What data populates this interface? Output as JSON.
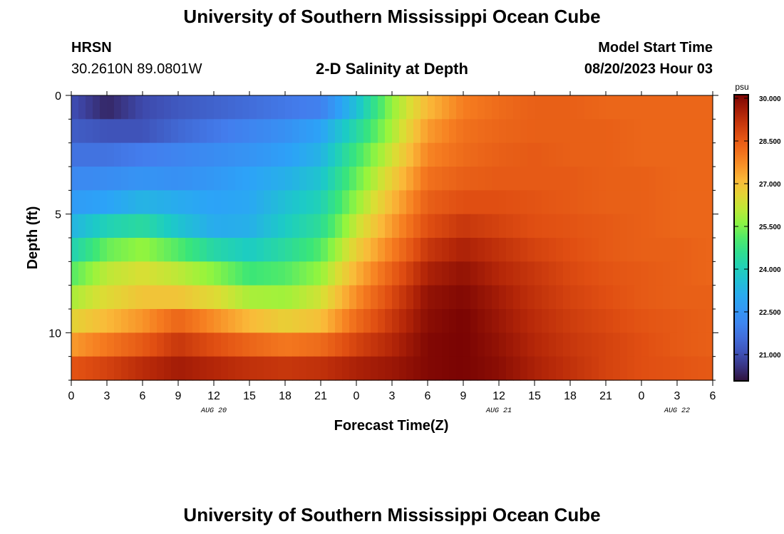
{
  "page": {
    "title": "University of Southern Mississippi Ocean Cube",
    "station": "HRSN",
    "coords": "30.2610N  89.0801W",
    "subtitle": "2-D Salinity at Depth",
    "model_label": "Model Start Time",
    "model_time": "08/20/2023 Hour 03",
    "footer_title": "University of Southern Mississippi Ocean Cube"
  },
  "chart_data": {
    "type": "heatmap",
    "title": "2-D Salinity at Depth",
    "xlabel": "Forecast Time(Z)",
    "ylabel": "Depth (ft)",
    "x_hours_range": [
      0,
      54
    ],
    "x_tick_hours": [
      0,
      3,
      6,
      9,
      12,
      15,
      18,
      21,
      24,
      27,
      30,
      33,
      36,
      39,
      42,
      45,
      48,
      51,
      54
    ],
    "x_tick_labels": [
      "0",
      "3",
      "6",
      "9",
      "12",
      "15",
      "18",
      "21",
      "0",
      "3",
      "6",
      "9",
      "12",
      "15",
      "18",
      "21",
      "0",
      "3",
      "6"
    ],
    "date_labels": [
      {
        "text": "AUG 20",
        "hour": 12
      },
      {
        "text": "AUG 21",
        "hour": 36
      },
      {
        "text": "AUG 22",
        "hour": 51
      }
    ],
    "y_range_ft": [
      0,
      12
    ],
    "y_major_ticks": [
      0,
      5,
      10
    ],
    "y_tick_labels": [
      "0",
      "5",
      "10"
    ],
    "colorbar": {
      "unit": "psu",
      "min": 20.0,
      "max": 30.0,
      "tick_values": [
        30.0,
        28.5,
        27.0,
        25.5,
        24.0,
        22.5,
        21.0
      ],
      "tick_labels": [
        "30.000",
        "28.500",
        "27.000",
        "25.500",
        "24.000",
        "22.500",
        "21.000"
      ]
    },
    "grid_hours": [
      0,
      3,
      6,
      9,
      12,
      15,
      18,
      21,
      24,
      27,
      30,
      33,
      36,
      39,
      42,
      45,
      48,
      51,
      54
    ],
    "depth_levels_ft": [
      0.5,
      1.5,
      2.5,
      3.5,
      4.5,
      5.5,
      6.5,
      7.5,
      8.5,
      9.5,
      10.5,
      11.5
    ],
    "salinity_psu": [
      [
        20.9,
        20.3,
        20.8,
        21.1,
        21.3,
        21.5,
        21.7,
        21.9,
        23.5,
        25.6,
        27.0,
        27.8,
        28.1,
        28.3,
        28.3,
        28.2,
        28.2,
        28.2,
        28.2
      ],
      [
        21.2,
        21.0,
        21.0,
        21.4,
        21.7,
        22.0,
        22.3,
        22.8,
        24.2,
        25.8,
        27.4,
        28.0,
        28.2,
        28.3,
        28.3,
        28.3,
        28.2,
        28.2,
        28.2
      ],
      [
        21.6,
        21.6,
        21.8,
        22.0,
        22.2,
        22.4,
        22.7,
        23.2,
        24.8,
        26.2,
        27.7,
        28.1,
        28.3,
        28.4,
        28.3,
        28.3,
        28.2,
        28.2,
        28.2
      ],
      [
        22.1,
        22.2,
        22.4,
        22.3,
        22.5,
        22.8,
        23.1,
        23.6,
        25.2,
        26.6,
        28.0,
        28.3,
        28.4,
        28.4,
        28.4,
        28.3,
        28.3,
        28.2,
        28.2
      ],
      [
        22.6,
        22.8,
        23.2,
        23.0,
        22.8,
        22.9,
        23.5,
        24.0,
        25.6,
        27.0,
        28.3,
        28.6,
        28.6,
        28.5,
        28.4,
        28.3,
        28.3,
        28.2,
        28.2
      ],
      [
        23.2,
        24.0,
        24.3,
        23.6,
        23.0,
        23.1,
        23.8,
        24.4,
        26.1,
        27.4,
        28.6,
        29.0,
        28.8,
        28.6,
        28.5,
        28.4,
        28.3,
        28.2,
        28.2
      ],
      [
        24.0,
        25.2,
        25.6,
        25.0,
        24.2,
        23.8,
        24.3,
        25.0,
        26.6,
        27.8,
        29.0,
        29.4,
        29.1,
        28.8,
        28.6,
        28.4,
        28.3,
        28.3,
        28.2
      ],
      [
        25.0,
        26.0,
        26.3,
        26.0,
        25.5,
        24.8,
        25.0,
        25.6,
        27.1,
        28.3,
        29.4,
        29.7,
        29.3,
        29.0,
        28.7,
        28.5,
        28.4,
        28.3,
        28.2
      ],
      [
        25.8,
        26.4,
        26.8,
        26.8,
        26.4,
        25.8,
        25.7,
        26.2,
        27.6,
        28.7,
        29.7,
        29.9,
        29.5,
        29.1,
        28.8,
        28.6,
        28.4,
        28.3,
        28.3
      ],
      [
        26.5,
        27.0,
        27.5,
        28.2,
        27.6,
        27.0,
        26.6,
        26.9,
        28.1,
        29.0,
        29.8,
        30.0,
        29.6,
        29.2,
        28.9,
        28.7,
        28.5,
        28.4,
        28.3
      ],
      [
        27.4,
        27.9,
        28.4,
        29.0,
        28.6,
        28.2,
        27.9,
        28.1,
        28.8,
        29.3,
        29.9,
        30.0,
        29.7,
        29.3,
        29.0,
        28.8,
        28.6,
        28.4,
        28.3
      ],
      [
        28.5,
        28.8,
        29.2,
        29.5,
        29.3,
        29.1,
        29.0,
        29.1,
        29.4,
        29.6,
        29.9,
        30.0,
        29.8,
        29.4,
        29.1,
        28.8,
        28.6,
        28.5,
        28.4
      ]
    ]
  }
}
